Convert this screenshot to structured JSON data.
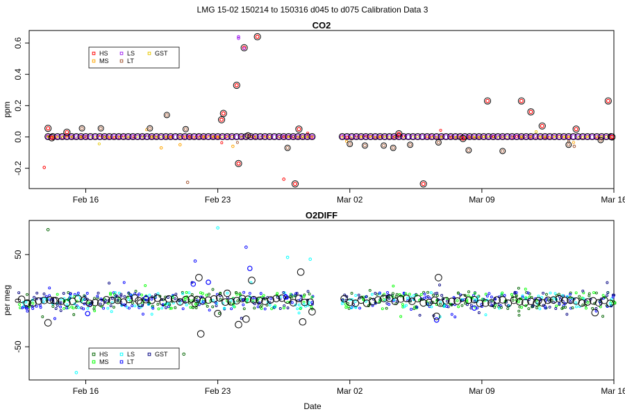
{
  "suptitle": "LMG   15-02    150214 to 150316    d045 to d075   Calibration Data 3",
  "x_axis": {
    "label": "Date",
    "range_days": [
      -1,
      30
    ],
    "ticks": [
      {
        "day": 2,
        "label": "Feb 16"
      },
      {
        "day": 9,
        "label": "Feb 23"
      },
      {
        "day": 16,
        "label": "Mar 02"
      },
      {
        "day": 23,
        "label": "Mar 09"
      },
      {
        "day": 30,
        "label": "Mar 16"
      }
    ],
    "day0": "Feb 14"
  },
  "chart_data": [
    {
      "type": "scatter",
      "title": "CO2",
      "ylabel": "ppm",
      "xlabel": "",
      "ylim": [
        -0.33,
        0.68
      ],
      "yticks": [
        -0.2,
        0.0,
        0.2,
        0.4,
        0.6
      ],
      "ytick_labels": [
        "-0.2",
        "0.0",
        "0.2",
        "0.4",
        "0.6"
      ],
      "legend": {
        "position": "top-left",
        "entries": [
          {
            "name": "HS",
            "color": "#ff0000"
          },
          {
            "name": "MS",
            "color": "#ffa500"
          },
          {
            "name": "LS",
            "color": "#a020f0"
          },
          {
            "name": "LT",
            "color": "#a0522d"
          },
          {
            "name": "GST",
            "color": "#e6c800"
          }
        ]
      },
      "segments": [
        [
          0.0,
          14.0
        ],
        [
          15.6,
          30.0
        ]
      ],
      "seed": 7,
      "small_spread": 0.008,
      "large_circles": [
        {
          "day": 0.0,
          "value": 0.055
        },
        {
          "day": 1.0,
          "value": 0.03
        },
        {
          "day": 0.2,
          "value": -0.005
        },
        {
          "day": 9.3,
          "value": 0.15
        },
        {
          "day": 9.2,
          "value": 0.11
        },
        {
          "day": 10.0,
          "value": 0.33
        },
        {
          "day": 10.4,
          "value": 0.57
        },
        {
          "day": 11.1,
          "value": 0.64
        },
        {
          "day": 10.1,
          "value": -0.17
        },
        {
          "day": 13.3,
          "value": 0.05
        },
        {
          "day": 13.1,
          "value": -0.3
        },
        {
          "day": 18.6,
          "value": 0.02
        },
        {
          "day": 19.9,
          "value": -0.3
        },
        {
          "day": 22.0,
          "value": -0.01
        },
        {
          "day": 23.3,
          "value": 0.23
        },
        {
          "day": 25.1,
          "value": 0.23
        },
        {
          "day": 25.6,
          "value": 0.16
        },
        {
          "day": 26.2,
          "value": 0.07
        },
        {
          "day": 28.0,
          "value": 0.05
        },
        {
          "day": 29.7,
          "value": 0.23
        },
        {
          "day": 29.9,
          "value": 0.0
        }
      ],
      "small_points": [
        {
          "day": -0.2,
          "value": -0.195,
          "color": "#ff0000"
        },
        {
          "day": 12.5,
          "value": -0.27,
          "color": "#ff0000"
        },
        {
          "day": 10.1,
          "value": 0.64,
          "color": "#a020f0"
        },
        {
          "day": 10.1,
          "value": 0.63,
          "color": "#a020f0"
        },
        {
          "day": 10.4,
          "value": 0.565,
          "color": "#a020f0"
        },
        {
          "day": 7.4,
          "value": -0.29,
          "color": "#a0522d"
        },
        {
          "day": 27.9,
          "value": -0.06,
          "color": "#a0522d"
        },
        {
          "day": 6.0,
          "value": -0.07,
          "color": "#ffa500"
        },
        {
          "day": 7.0,
          "value": -0.05,
          "color": "#ffa500"
        },
        {
          "day": 9.8,
          "value": -0.06,
          "color": "#ffa500"
        }
      ],
      "brown_rings": [
        {
          "day": 1.8,
          "value": 0.055
        },
        {
          "day": 2.8,
          "value": 0.055
        },
        {
          "day": 5.4,
          "value": 0.055
        },
        {
          "day": 6.3,
          "value": 0.14
        },
        {
          "day": 7.3,
          "value": 0.05
        },
        {
          "day": 10.6,
          "value": 0.01
        },
        {
          "day": 12.7,
          "value": -0.07
        },
        {
          "day": 16.0,
          "value": -0.045
        },
        {
          "day": 16.8,
          "value": -0.055
        },
        {
          "day": 17.8,
          "value": -0.055
        },
        {
          "day": 18.3,
          "value": -0.07
        },
        {
          "day": 19.2,
          "value": -0.05
        },
        {
          "day": 20.7,
          "value": -0.035
        },
        {
          "day": 22.3,
          "value": -0.085
        },
        {
          "day": 24.1,
          "value": -0.09
        },
        {
          "day": 27.6,
          "value": -0.05
        },
        {
          "day": 29.3,
          "value": -0.02
        }
      ]
    },
    {
      "type": "scatter",
      "title": "O2DIFF",
      "ylabel": "per meg",
      "xlabel": "Date",
      "ylim": [
        -86,
        87
      ],
      "yticks": [
        -50,
        0,
        50
      ],
      "ytick_labels": [
        "-50",
        "0",
        "50"
      ],
      "legend": {
        "position": "bottom-left",
        "entries": [
          {
            "name": "HS",
            "color": "#006400"
          },
          {
            "name": "MS",
            "color": "#00ff00"
          },
          {
            "name": "LS",
            "color": "#00ffff"
          },
          {
            "name": "LT",
            "color": "#0000ff"
          },
          {
            "name": "GST",
            "color": "#000080"
          }
        ]
      },
      "segments": [
        [
          -1.5,
          14.0
        ],
        [
          15.6,
          30.0
        ]
      ],
      "seed": 11,
      "small_spread": 9,
      "large_circles": [
        {
          "day": 0.0,
          "value": -24
        },
        {
          "day": 0.3,
          "value": 0
        },
        {
          "day": 4.8,
          "value": 0
        },
        {
          "day": 7.8,
          "value": -3
        },
        {
          "day": 8.0,
          "value": 25
        },
        {
          "day": 8.1,
          "value": -36
        },
        {
          "day": 9.0,
          "value": -14
        },
        {
          "day": 9.5,
          "value": 8
        },
        {
          "day": 10.1,
          "value": -26
        },
        {
          "day": 10.5,
          "value": -20
        },
        {
          "day": 10.8,
          "value": 22
        },
        {
          "day": 13.4,
          "value": 31
        },
        {
          "day": 13.5,
          "value": -23
        },
        {
          "day": 14.0,
          "value": -12
        },
        {
          "day": 20.7,
          "value": 25
        },
        {
          "day": 20.6,
          "value": -17
        },
        {
          "day": 26.0,
          "value": 0
        },
        {
          "day": 29.0,
          "value": -13
        }
      ],
      "small_points": [
        {
          "day": 0.0,
          "value": 77,
          "color": "#006400"
        },
        {
          "day": 9.0,
          "value": 79,
          "color": "#00ffff"
        },
        {
          "day": 10.5,
          "value": 58,
          "color": "#0000ff"
        },
        {
          "day": 7.8,
          "value": 43,
          "color": "#0000ff"
        },
        {
          "day": 7.2,
          "value": -58,
          "color": "#006400"
        },
        {
          "day": 1.5,
          "value": -78,
          "color": "#00ffff"
        },
        {
          "day": 13.9,
          "value": 45,
          "color": "#00ffff"
        },
        {
          "day": 12.7,
          "value": 47,
          "color": "#00ffff"
        }
      ],
      "blue_rings": [
        {
          "day": 10.7,
          "value": 35
        },
        {
          "day": 7.7,
          "value": 18
        },
        {
          "day": 2.1,
          "value": -14
        },
        {
          "day": 5.2,
          "value": 3
        },
        {
          "day": 20.6,
          "value": -21
        },
        {
          "day": 22.6,
          "value": -8
        },
        {
          "day": 12.6,
          "value": 4
        },
        {
          "day": 8.5,
          "value": 20
        }
      ]
    }
  ]
}
